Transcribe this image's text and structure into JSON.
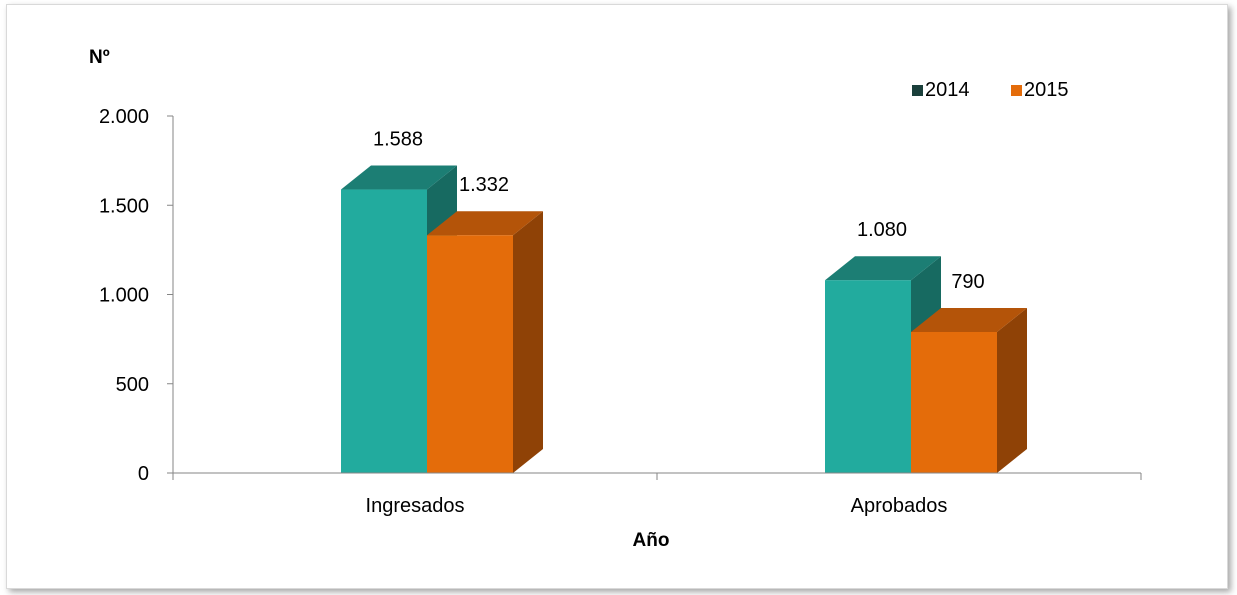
{
  "chart_data": {
    "type": "bar",
    "categories": [
      "Ingresados",
      "Aprobados"
    ],
    "series": [
      {
        "name": "2014",
        "values": [
          1588,
          1080
        ]
      },
      {
        "name": "2015",
        "values": [
          1332,
          790
        ]
      }
    ],
    "data_labels": [
      [
        "1.588",
        "1.080"
      ],
      [
        "1.332",
        "790"
      ]
    ],
    "xlabel": "Año",
    "ylabel": "Nº",
    "ylim": [
      0,
      2000
    ],
    "yticks": [
      0,
      500,
      1000,
      1500,
      2000
    ],
    "ytick_labels": [
      "0",
      "500",
      "1.000",
      "1.500",
      "2.000"
    ],
    "legend_position": "top-right",
    "grid": false,
    "colors": {
      "2014": {
        "front": "#22ab9e",
        "top": "#1c7e74",
        "side": "#176a61"
      },
      "2015": {
        "front": "#e46c0a",
        "top": "#b45409",
        "side": "#8f4206"
      }
    }
  }
}
